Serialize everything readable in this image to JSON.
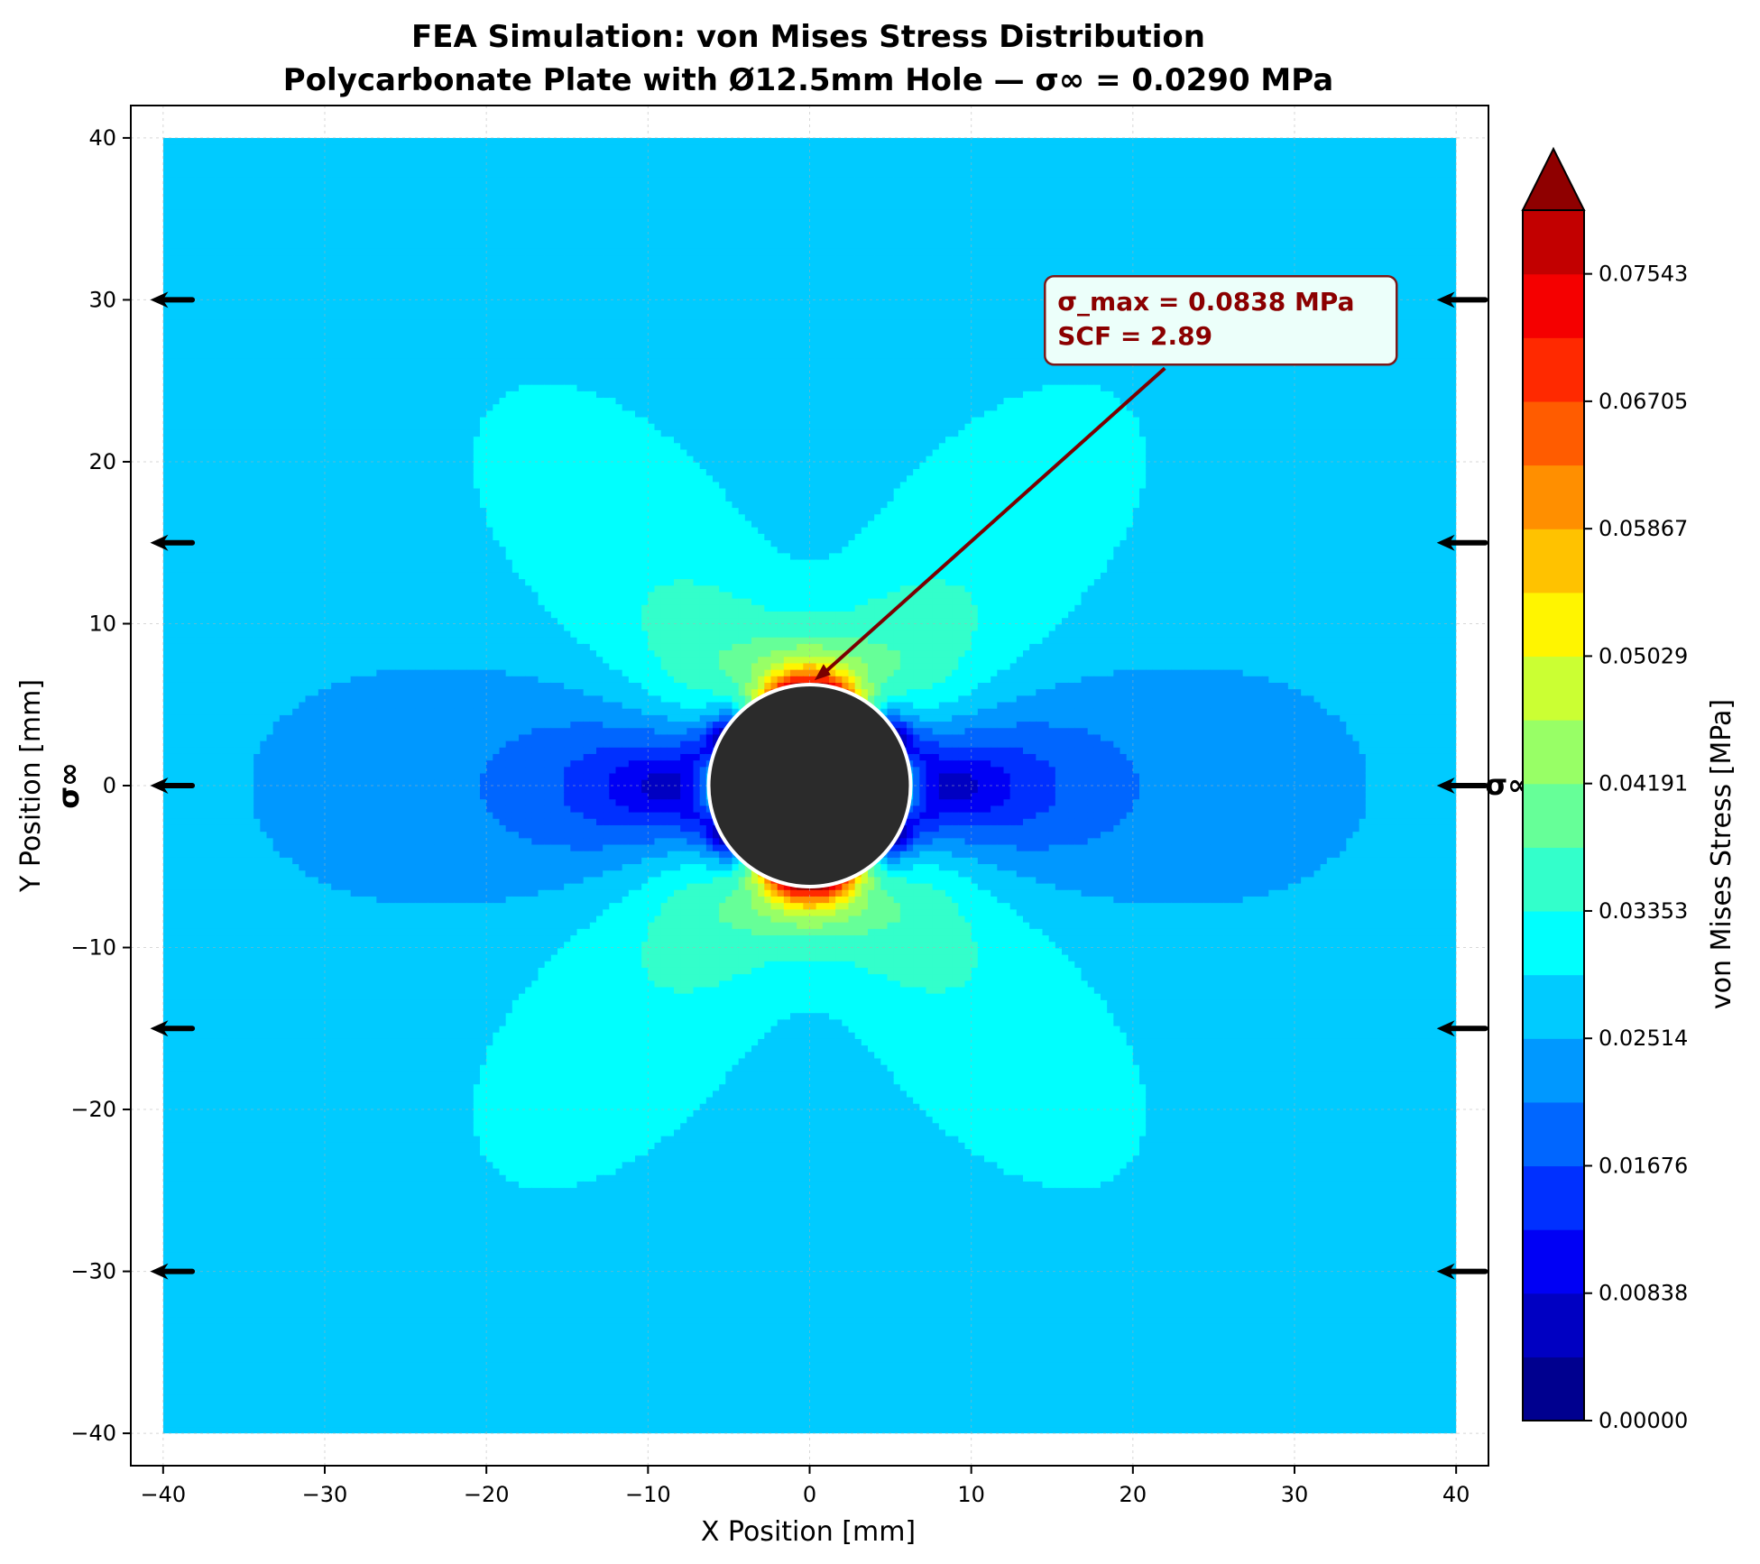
{
  "chart_data": {
    "type": "heatmap",
    "subtype": "filled-contour",
    "title_line1": "FEA Simulation: von Mises Stress Distribution",
    "title_line2": "Polycarbonate Plate with Ø12.5mm Hole — σ∞ = 0.0290 MPa",
    "xlabel": "X Position [mm]",
    "ylabel": "Y Position [mm]",
    "xlim": [
      -42,
      42
    ],
    "ylim": [
      -42,
      42
    ],
    "plate_extent": [
      -40,
      40
    ],
    "xticks": [
      -40,
      -30,
      -20,
      -10,
      0,
      10,
      20,
      30,
      40
    ],
    "yticks": [
      -40,
      -30,
      -20,
      -10,
      0,
      10,
      20,
      30,
      40
    ],
    "grid": true,
    "hole": {
      "center": [
        0,
        0
      ],
      "diameter": 12.5,
      "color": "#2b2b2b"
    },
    "far_field_stress": 0.029,
    "sigma_max": 0.0838,
    "scf": 2.89,
    "annotation": {
      "line1": "σ_max = 0.0838 MPa",
      "line2": "SCF = 2.89",
      "text_xy": [
        15,
        26
      ],
      "arrow_to": [
        0.3,
        6.5
      ]
    },
    "load_arrows": {
      "y_positions": [
        30,
        15,
        0,
        -15,
        -30
      ],
      "left_x": [
        -38.2,
        -40.8
      ],
      "right_x": [
        41.8,
        38.8
      ],
      "label": "σ∞"
    },
    "colorbar": {
      "label": "von Mises Stress [MPa]",
      "levels_min": 0,
      "levels_max": 0.0838,
      "n_bins": 19,
      "extend": "max",
      "tick_labels": [
        "0.00000",
        "0.00838",
        "0.01676",
        "0.02514",
        "0.03353",
        "0.04191",
        "0.05029",
        "0.05867",
        "0.06705",
        "0.07543"
      ],
      "colors": [
        "#00008f",
        "#0000c2",
        "#0000f5",
        "#0030ff",
        "#0066ff",
        "#0098ff",
        "#00cbff",
        "#00fffe",
        "#33ffcb",
        "#66ff98",
        "#98ff66",
        "#cbff33",
        "#fff500",
        "#ffc200",
        "#ff8f00",
        "#ff5c00",
        "#ff2900",
        "#f50000",
        "#c20000",
        "#8f0000"
      ]
    }
  }
}
